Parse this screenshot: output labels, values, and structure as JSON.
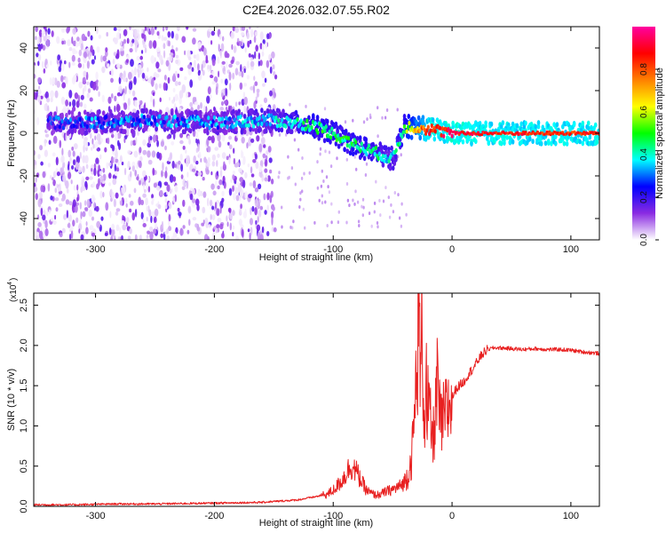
{
  "figure_title": "C2E4.2026.032.07.55.R02",
  "chart_data": [
    {
      "type": "heatmap",
      "title": "C2E4.2026.032.07.55.R02",
      "xlabel": "Height of straight line (km)",
      "ylabel": "Frequency (Hz)",
      "xlim": [
        -352,
        124
      ],
      "ylim": [
        -50,
        50
      ],
      "xticks": [
        -300,
        -200,
        -100,
        0,
        100
      ],
      "yticks": [
        -40,
        -20,
        0,
        20,
        40
      ],
      "xtick_labels": [
        "-300",
        "-200",
        "-100",
        "0",
        "100"
      ],
      "ytick_labels": [
        "-40",
        "-20",
        "0",
        "20",
        "40"
      ],
      "noise_region_x": [
        -352,
        -148
      ],
      "ridge": {
        "description": "frequency of the strongest spectral component vs height",
        "x": [
          -340,
          -300,
          -250,
          -200,
          -150,
          -120,
          -100,
          -80,
          -60,
          -50,
          -40,
          -30,
          -20,
          0,
          50,
          124
        ],
        "y": [
          5,
          5,
          6,
          5,
          6,
          4,
          0,
          -6,
          -10,
          -12,
          3,
          3,
          2,
          0,
          0,
          0
        ],
        "amplitude": [
          0.25,
          0.3,
          0.3,
          0.3,
          0.35,
          0.45,
          0.45,
          0.45,
          0.4,
          0.35,
          0.5,
          0.7,
          0.85,
          0.9,
          0.85,
          0.85
        ]
      },
      "colorbar": {
        "label": "Normalized spectral amplitude",
        "range": [
          0,
          1
        ],
        "ticks": [
          0.0,
          0.2,
          0.4,
          0.6,
          0.8
        ],
        "tick_labels": [
          "0.0",
          "0.2",
          "0.4",
          "0.6",
          "0.8"
        ],
        "colors": [
          "#ffffff",
          "#8a2be2",
          "#0000ff",
          "#00ffff",
          "#00ff00",
          "#ffff00",
          "#ff8000",
          "#ff0000",
          "#ff00a0"
        ]
      }
    },
    {
      "type": "line",
      "title": "",
      "xlabel": "Height of straight line (km)",
      "ylabel": "SNR (10 * v/v)",
      "scale_label": "(x10",
      "scale_exponent": "4",
      "xlim": [
        -352,
        124
      ],
      "ylim": [
        0,
        2.65
      ],
      "xticks": [
        -300,
        -200,
        -100,
        0,
        100
      ],
      "yticks": [
        0.0,
        0.5,
        1.0,
        1.5,
        2.0,
        2.5
      ],
      "xtick_labels": [
        "-300",
        "-200",
        "-100",
        "0",
        "100"
      ],
      "ytick_labels": [
        "0.0",
        "0.5",
        "1.0",
        "1.5",
        "2.0",
        "2.5"
      ],
      "color": "#e82020",
      "series": [
        {
          "name": "SNR",
          "x": [
            -352,
            -320,
            -280,
            -250,
            -200,
            -160,
            -130,
            -115,
            -105,
            -100,
            -95,
            -90,
            -87,
            -84,
            -80,
            -76,
            -72,
            -68,
            -64,
            -60,
            -56,
            -52,
            -48,
            -44,
            -40,
            -37,
            -34,
            -32,
            -30,
            -28,
            -26,
            -25,
            -24,
            -23,
            -22,
            -21,
            -20,
            -18,
            -16,
            -14,
            -12,
            -10,
            -8,
            -6,
            -4,
            -2,
            0,
            3,
            6,
            10,
            14,
            18,
            22,
            26,
            30,
            35,
            40,
            50,
            60,
            70,
            80,
            90,
            100,
            110,
            124
          ],
          "y": [
            0.02,
            0.02,
            0.03,
            0.03,
            0.04,
            0.05,
            0.08,
            0.12,
            0.15,
            0.2,
            0.28,
            0.38,
            0.47,
            0.5,
            0.42,
            0.3,
            0.2,
            0.16,
            0.14,
            0.15,
            0.18,
            0.2,
            0.22,
            0.25,
            0.3,
            0.4,
            0.6,
            1.0,
            1.6,
            2.3,
            1.5,
            2.6,
            1.2,
            1.1,
            1.95,
            0.9,
            1.3,
            1.0,
            0.8,
            1.2,
            1.55,
            1.0,
            1.05,
            1.12,
            1.2,
            1.28,
            1.35,
            1.45,
            1.5,
            1.55,
            1.65,
            1.72,
            1.82,
            1.9,
            1.95,
            1.97,
            1.97,
            1.96,
            1.95,
            1.96,
            1.95,
            1.95,
            1.94,
            1.92,
            1.9
          ]
        }
      ]
    }
  ]
}
